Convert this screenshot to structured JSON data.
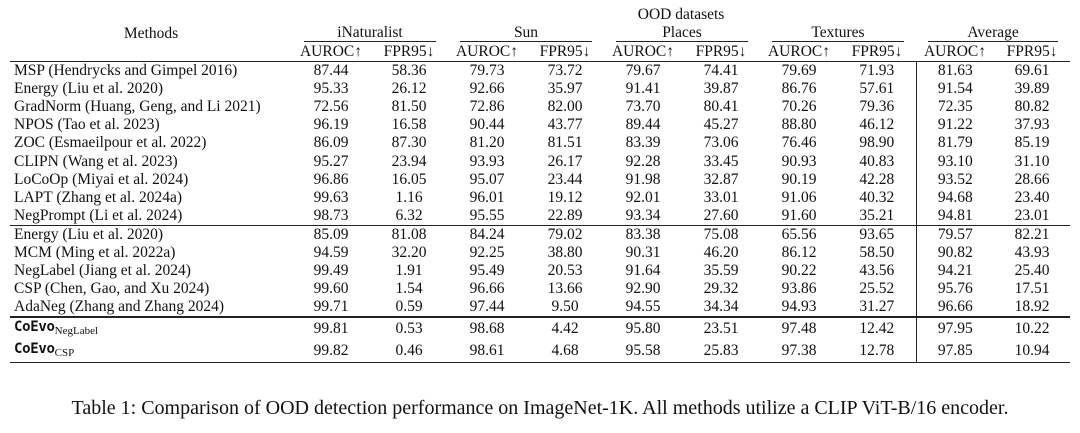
{
  "table": {
    "methods_header": "Methods",
    "group_header": "OOD datasets",
    "datasets": [
      "iNaturalist",
      "Sun",
      "Places",
      "Textures",
      "Average"
    ],
    "metrics": [
      "AUROC↑",
      "FPR95↓",
      "AUROC↑",
      "FPR95↓",
      "AUROC↑",
      "FPR95↓",
      "AUROC↑",
      "FPR95↓",
      "AUROC↑",
      "FPR95↓"
    ],
    "section1": [
      {
        "method": "MSP (Hendrycks and Gimpel 2016)",
        "values": [
          "87.44",
          "58.36",
          "79.73",
          "73.72",
          "79.67",
          "74.41",
          "79.69",
          "71.93",
          "81.63",
          "69.61"
        ]
      },
      {
        "method": "Energy (Liu et al. 2020)",
        "values": [
          "95.33",
          "26.12",
          "92.66",
          "35.97",
          "91.41",
          "39.87",
          "86.76",
          "57.61",
          "91.54",
          "39.89"
        ]
      },
      {
        "method": "GradNorm (Huang, Geng, and Li 2021)",
        "values": [
          "72.56",
          "81.50",
          "72.86",
          "82.00",
          "73.70",
          "80.41",
          "70.26",
          "79.36",
          "72.35",
          "80.82"
        ]
      },
      {
        "method": "NPOS (Tao et al. 2023)",
        "values": [
          "96.19",
          "16.58",
          "90.44",
          "43.77",
          "89.44",
          "45.27",
          "88.80",
          "46.12",
          "91.22",
          "37.93"
        ]
      },
      {
        "method": "ZOC (Esmaeilpour et al. 2022)",
        "values": [
          "86.09",
          "87.30",
          "81.20",
          "81.51",
          "83.39",
          "73.06",
          "76.46",
          "98.90",
          "81.79",
          "85.19"
        ]
      },
      {
        "method": "CLIPN (Wang et al. 2023)",
        "values": [
          "95.27",
          "23.94",
          "93.93",
          "26.17",
          "92.28",
          "33.45",
          "90.93",
          "40.83",
          "93.10",
          "31.10"
        ]
      },
      {
        "method": "LoCoOp (Miyai et al. 2024)",
        "values": [
          "96.86",
          "16.05",
          "95.07",
          "23.44",
          "91.98",
          "32.87",
          "90.19",
          "42.28",
          "93.52",
          "28.66"
        ]
      },
      {
        "method": "LAPT (Zhang et al. 2024a)",
        "values": [
          "99.63",
          "1.16",
          "96.01",
          "19.12",
          "92.01",
          "33.01",
          "91.06",
          "40.32",
          "94.68",
          "23.40"
        ]
      },
      {
        "method": "NegPrompt (Li et al. 2024)",
        "values": [
          "98.73",
          "6.32",
          "95.55",
          "22.89",
          "93.34",
          "27.60",
          "91.60",
          "35.21",
          "94.81",
          "23.01"
        ]
      }
    ],
    "section2": [
      {
        "method": "Energy (Liu et al. 2020)",
        "values": [
          "85.09",
          "81.08",
          "84.24",
          "79.02",
          "83.38",
          "75.08",
          "65.56",
          "93.65",
          "79.57",
          "82.21"
        ]
      },
      {
        "method": "MCM (Ming et al. 2022a)",
        "values": [
          "94.59",
          "32.20",
          "92.25",
          "38.80",
          "90.31",
          "46.20",
          "86.12",
          "58.50",
          "90.82",
          "43.93"
        ]
      },
      {
        "method": "NegLabel (Jiang et al. 2024)",
        "values": [
          "99.49",
          "1.91",
          "95.49",
          "20.53",
          "91.64",
          "35.59",
          "90.22",
          "43.56",
          "94.21",
          "25.40"
        ]
      },
      {
        "method": "CSP (Chen, Gao, and Xu 2024)",
        "values": [
          "99.60",
          "1.54",
          "96.66",
          "13.66",
          "92.90",
          "29.32",
          "93.86",
          "25.52",
          "95.76",
          "17.51"
        ]
      },
      {
        "method": "AdaNeg (Zhang and Zhang 2024)",
        "values": [
          "99.71",
          "0.59",
          "97.44",
          "9.50",
          "94.55",
          "34.34",
          "94.93",
          "31.27",
          "96.66",
          "18.92"
        ]
      }
    ],
    "section3": [
      {
        "method": "CoEvo",
        "method_sub": "NegLabel",
        "values": [
          "99.81",
          "0.53",
          "98.68",
          "4.42",
          "95.80",
          "23.51",
          "97.48",
          "12.42",
          "97.95",
          "10.22"
        ]
      },
      {
        "method": "CoEvo",
        "method_sub": "CSP",
        "values": [
          "99.82",
          "0.46",
          "98.61",
          "4.68",
          "95.58",
          "25.83",
          "97.38",
          "12.78",
          "97.85",
          "10.94"
        ]
      }
    ]
  },
  "caption": "Table 1: Comparison of OOD detection performance on ImageNet-1K. All methods utilize a CLIP ViT-B/16 encoder."
}
